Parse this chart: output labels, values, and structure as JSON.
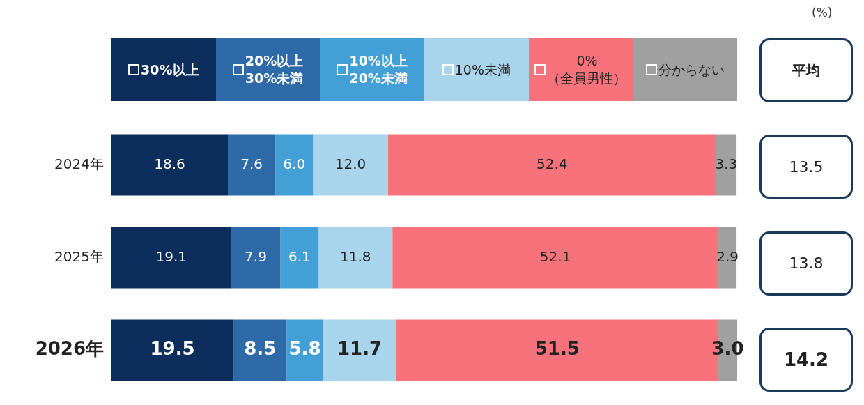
{
  "chart_data": {
    "type": "bar",
    "orientation": "horizontal",
    "stacked": true,
    "categories": [
      "2024年",
      "2025年",
      "2026年"
    ],
    "xlim": [
      0,
      100
    ],
    "tick_labels": "y",
    "legend": "top",
    "data_labels": true,
    "series": [
      {
        "name": "30%以上",
        "color": "#0d2d5c",
        "values": [
          18.6,
          19.1,
          19.5
        ],
        "value_labels": [
          "18.6",
          "19.1",
          "19.5"
        ]
      },
      {
        "name": "20%以上\n30%未満",
        "color": "#2e6aa8",
        "values": [
          7.6,
          7.9,
          8.5
        ],
        "value_labels": [
          "7.6",
          "7.9",
          "8.5"
        ]
      },
      {
        "name": "10%以上\n20%未満",
        "color": "#42a0d6",
        "values": [
          6.0,
          6.1,
          5.8
        ],
        "value_labels": [
          "6.0",
          "6.1",
          "5.8"
        ]
      },
      {
        "name": "10%未満",
        "color": "#a8d4ec",
        "values": [
          12.0,
          11.8,
          11.7
        ],
        "value_labels": [
          "12.0",
          "11.8",
          "11.7"
        ]
      },
      {
        "name": "0%\n（全員男性）",
        "color": "#f7727b",
        "values": [
          52.4,
          52.1,
          51.5
        ],
        "value_labels": [
          "52.4",
          "52.1",
          "51.5"
        ]
      },
      {
        "name": "分からない",
        "color": "#a0a0a0",
        "values": [
          3.3,
          2.9,
          3.0
        ],
        "value_labels": [
          "3.3",
          "2.9",
          "3.0"
        ]
      }
    ],
    "annotations": [
      "(%)",
      "平均",
      "13.5",
      "13.8",
      "14.2"
    ]
  }
}
